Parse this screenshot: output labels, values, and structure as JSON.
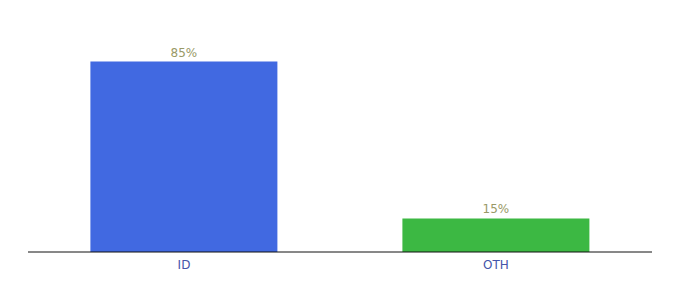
{
  "chart_data": {
    "type": "bar",
    "categories": [
      "ID",
      "OTH"
    ],
    "values": [
      85,
      15
    ],
    "value_labels": [
      "85%",
      "15%"
    ],
    "colors": [
      "#4169e1",
      "#3cb843"
    ],
    "ylim": [
      0,
      100
    ],
    "tick_labels": "x",
    "data_labels": true
  }
}
